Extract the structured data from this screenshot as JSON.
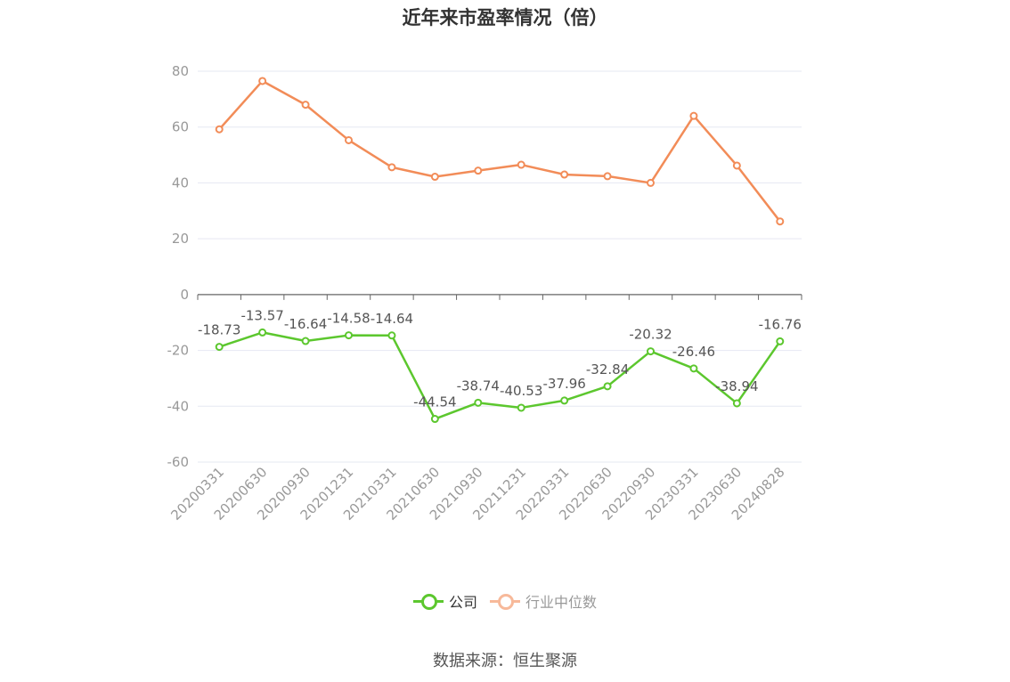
{
  "title": "近年来市盈率情况（倍）",
  "source": "数据来源：恒生聚源",
  "legend": {
    "company": "公司",
    "industry": "行业中位数"
  },
  "colors": {
    "company": "#5cc72e",
    "industry": "#f28c58",
    "industry_legend": "#f7b99a",
    "grid": "#e6e8f2",
    "axis": "#666666"
  },
  "chart_data": {
    "type": "line",
    "title": "近年来市盈率情况（倍）",
    "xlabel": "",
    "ylabel": "",
    "ylim": [
      -60,
      80
    ],
    "yticks": [
      80,
      60,
      40,
      20,
      0,
      -20,
      -40,
      -60
    ],
    "grid": true,
    "legend_position": "bottom-center",
    "categories": [
      "20200331",
      "20200630",
      "20200930",
      "20201231",
      "20210331",
      "20210630",
      "20210930",
      "20211231",
      "20220331",
      "20220630",
      "20220930",
      "20230331",
      "20230630",
      "20240828"
    ],
    "series": [
      {
        "name": "公司",
        "values": [
          -18.73,
          -13.57,
          -16.64,
          -14.58,
          -14.64,
          -44.54,
          -38.74,
          -40.53,
          -37.96,
          -32.84,
          -20.32,
          -26.46,
          -38.94,
          -16.76
        ],
        "labels": [
          "-18.73",
          "-13.57",
          "-16.64",
          "-14.58",
          "-14.64",
          "-44.54",
          "-38.74",
          "-40.53",
          "-37.96",
          "-32.84",
          "-20.32",
          "-26.46",
          "-38.94",
          "-16.76"
        ]
      },
      {
        "name": "行业中位数",
        "values": [
          59.2,
          76.5,
          68.0,
          55.3,
          45.6,
          42.2,
          44.4,
          46.5,
          43.0,
          42.4,
          40.0,
          64.0,
          46.2,
          26.2
        ]
      }
    ]
  }
}
